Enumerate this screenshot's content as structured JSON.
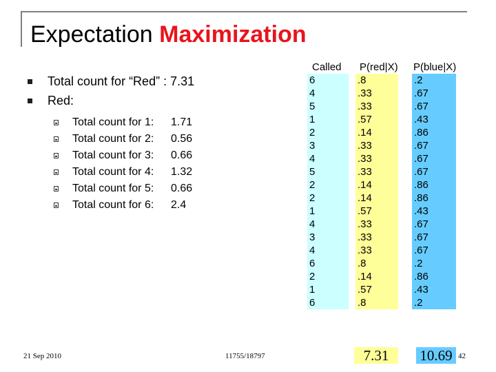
{
  "slide": {
    "title_plain": "Expectation ",
    "title_accent": "Maximization",
    "accent_color": "#e8141c",
    "bullets": [
      "Total count for “Red” : 7.31",
      "Red:"
    ],
    "sub_items": [
      {
        "label": "Total count for 1:",
        "value": "1.71"
      },
      {
        "label": "Total count for 2:",
        "value": "0.56"
      },
      {
        "label": "Total count for 3:",
        "value": "0.66"
      },
      {
        "label": "Total count for 4:",
        "value": "1.32"
      },
      {
        "label": "Total count for 5:",
        "value": "0.66"
      },
      {
        "label": "Total count for 6:",
        "value": "2.4"
      }
    ],
    "table": {
      "headers": [
        "Called",
        "P(red|X)",
        "P(blue|X)"
      ],
      "called": [
        "6",
        "4",
        "5",
        "1",
        "2",
        "3",
        "4",
        "5",
        "2",
        "2",
        "1",
        "4",
        "3",
        "4",
        "6",
        "2",
        "1",
        "6"
      ],
      "p_red": [
        ".8",
        ".33",
        ".33",
        ".57",
        ".14",
        ".33",
        ".33",
        ".33",
        ".14",
        ".14",
        ".57",
        ".33",
        ".33",
        ".33",
        ".8",
        ".14",
        ".57",
        ".8"
      ],
      "p_blue": [
        ".2",
        ".67",
        ".67",
        ".43",
        ".86",
        ".67",
        ".67",
        ".67",
        ".86",
        ".86",
        ".43",
        ".67",
        ".67",
        ".67",
        ".2",
        ".86",
        ".43",
        ".2"
      ],
      "highlight_colors": {
        "called": "#ccffff",
        "red": "#ffff99",
        "blue": "#66ccff"
      }
    },
    "sum_red": "7.31",
    "sum_blue": "10.69",
    "footer_date": "21 Sep 2010",
    "footer_course": "11755/18797",
    "page_number": "42"
  }
}
